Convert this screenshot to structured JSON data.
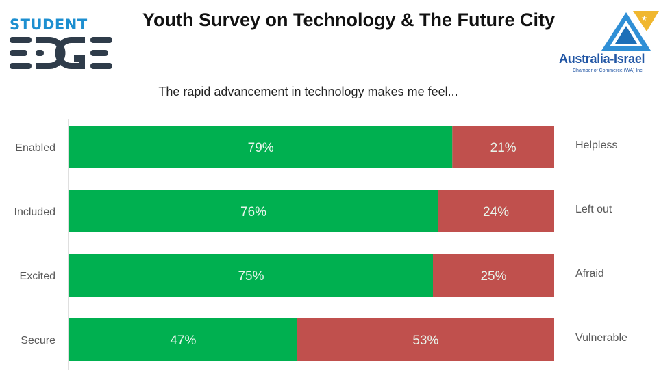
{
  "header": {
    "title": "Youth Survey on Technology & The Future City",
    "left_logo": {
      "line1": "STUDENT",
      "line2": "EDGE"
    },
    "right_logo": {
      "name": "Australia-Israel",
      "sub": "Chamber of Commerce (WA) Inc"
    }
  },
  "colors": {
    "positive": "#00b050",
    "negative": "#c0504d",
    "axis": "#bfbfbf",
    "label": "#595959",
    "inbar_text": "#e8f5ec"
  },
  "chart_data": {
    "type": "bar",
    "orientation": "horizontal",
    "stacked": "100%",
    "title": "The rapid advancement in technology makes me feel...",
    "categories": [
      "Enabled",
      "Included",
      "Excited",
      "Secure"
    ],
    "opposite_categories": [
      "Helpless",
      "Left out",
      "Afraid",
      "Vulnerable"
    ],
    "series": [
      {
        "values": [
          79,
          76,
          75,
          47
        ],
        "labels": [
          "79%",
          "76%",
          "75%",
          "47%"
        ],
        "color": "#00b050"
      },
      {
        "values": [
          21,
          24,
          25,
          53
        ],
        "labels": [
          "21%",
          "24%",
          "25%",
          "53%"
        ],
        "color": "#c0504d"
      }
    ],
    "xlim": [
      0,
      100
    ],
    "grid": false,
    "legend": "none"
  }
}
